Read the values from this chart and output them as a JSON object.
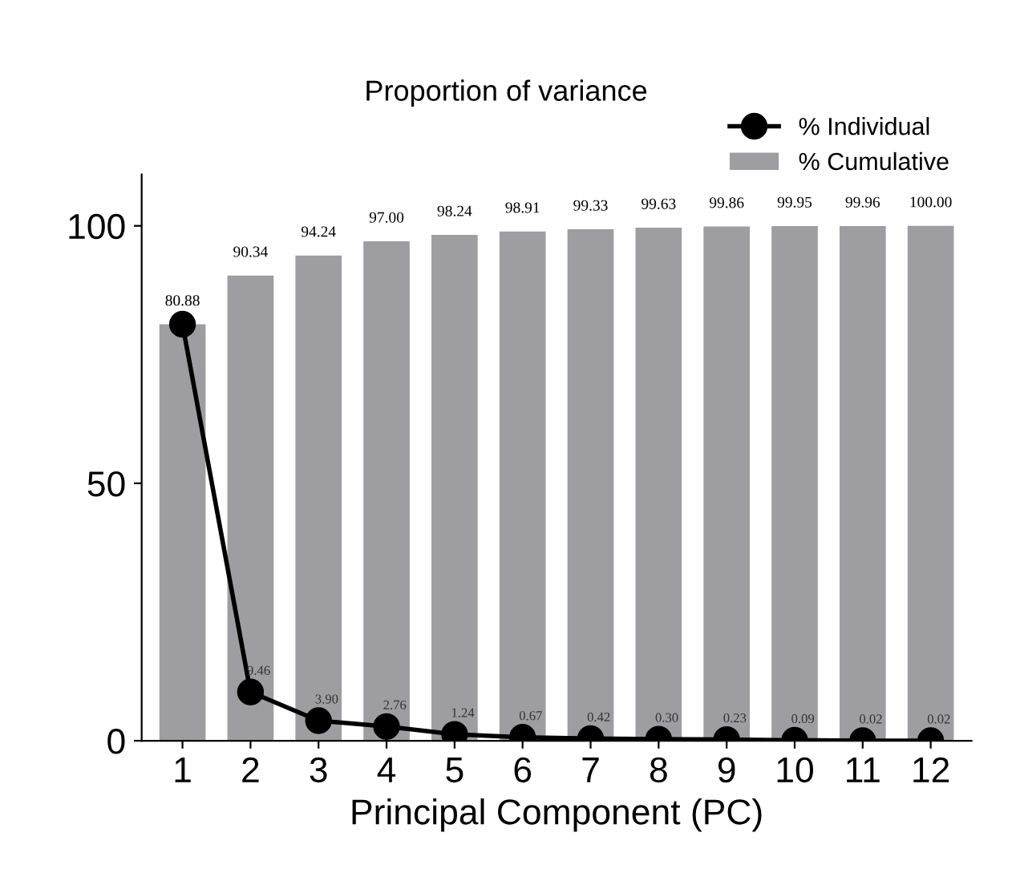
{
  "chart_data": {
    "type": "bar",
    "title": "Proportion of variance",
    "xlabel": "Principal Component (PC)",
    "categories": [
      "1",
      "2",
      "3",
      "4",
      "5",
      "6",
      "7",
      "8",
      "9",
      "10",
      "11",
      "12"
    ],
    "series": [
      {
        "name": "% Individual",
        "type": "line",
        "color": "#000000",
        "values": [
          80.88,
          9.46,
          3.9,
          2.76,
          1.24,
          0.67,
          0.42,
          0.3,
          0.23,
          0.09,
          0.02,
          0.02
        ],
        "value_labels": [
          null,
          "9.46",
          "3.90",
          "2.76",
          "1.24",
          "0.67",
          "0.42",
          "0.30",
          "0.23",
          "0.09",
          "0.02",
          "0.02"
        ]
      },
      {
        "name": "% Cumulative",
        "type": "bar",
        "color": "#9e9ea2",
        "values": [
          80.88,
          90.34,
          94.24,
          97.0,
          98.24,
          98.91,
          99.33,
          99.63,
          99.86,
          99.95,
          99.96,
          100.0
        ],
        "value_labels": [
          "80.88",
          "90.34",
          "94.24",
          "97.00",
          "98.24",
          "98.91",
          "99.33",
          "99.63",
          "99.86",
          "99.95",
          "99.96",
          "100.00"
        ]
      }
    ],
    "ylim": [
      0,
      110
    ],
    "yticks": [
      0,
      50,
      100
    ],
    "legend": "top right",
    "marker": "circle",
    "line_style": "solid",
    "grid": false
  }
}
